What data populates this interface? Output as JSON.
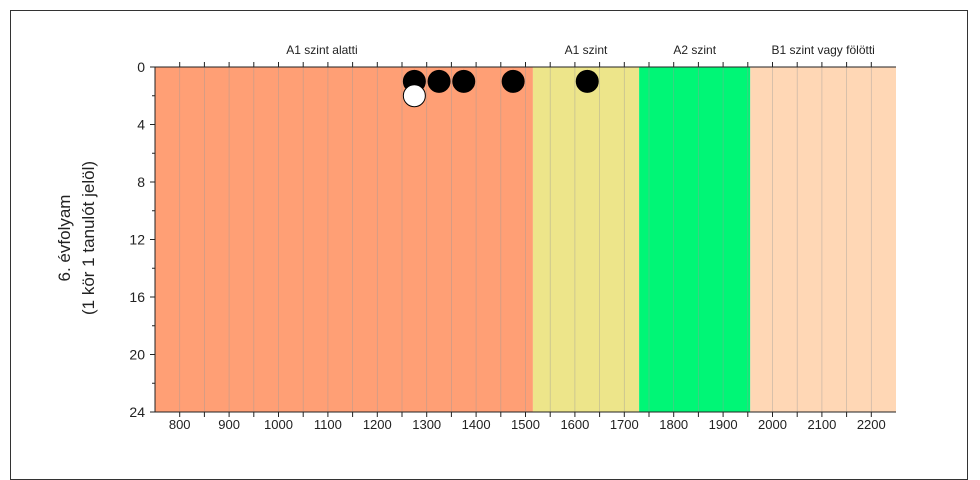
{
  "chart_data": {
    "type": "scatter",
    "ylabel_line1": "6. évfolyam",
    "ylabel_line2": "(1 kör 1 tanulót jelöl)",
    "xlim": [
      750,
      2250
    ],
    "ylim": [
      0,
      24
    ],
    "y_inverted": true,
    "x_ticks": [
      "800",
      "900",
      "1000",
      "1100",
      "1200",
      "1300",
      "1400",
      "1500",
      "1600",
      "1700",
      "1800",
      "1900",
      "2000",
      "2100",
      "2200"
    ],
    "y_ticks": [
      "0",
      "4",
      "8",
      "12",
      "16",
      "20",
      "24"
    ],
    "bands": [
      {
        "label": "A1 szint alatti",
        "from": 750,
        "to": 1515,
        "color": "#ff9f75"
      },
      {
        "label": "A1 szint",
        "from": 1515,
        "to": 1730,
        "color": "#ede58a"
      },
      {
        "label": "A2 szint",
        "from": 1730,
        "to": 1955,
        "color": "#00f676"
      },
      {
        "label": "B1 szint vagy fölötti",
        "from": 1955,
        "to": 2250,
        "color": "#ffd7b5"
      }
    ],
    "points": [
      {
        "x": 1275,
        "y": 1,
        "fill": "#000000"
      },
      {
        "x": 1275,
        "y": 2,
        "fill": "#ffffff"
      },
      {
        "x": 1325,
        "y": 1,
        "fill": "#000000"
      },
      {
        "x": 1375,
        "y": 1,
        "fill": "#000000"
      },
      {
        "x": 1475,
        "y": 1,
        "fill": "#000000"
      },
      {
        "x": 1625,
        "y": 1,
        "fill": "#000000"
      }
    ],
    "grid": true,
    "legend": "none"
  }
}
